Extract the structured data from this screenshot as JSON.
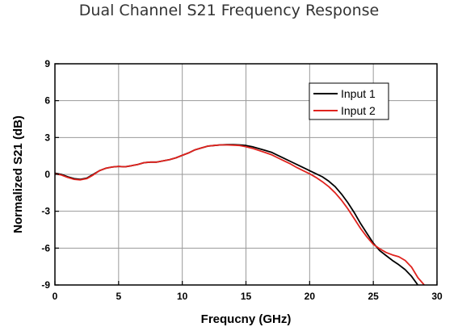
{
  "chart_data": {
    "type": "line",
    "title": "Dual Channel S21 Frequency Response",
    "xlabel": "Frequcny (GHz)",
    "ylabel": "Normalized S21 (dB)",
    "xlim": [
      0,
      30
    ],
    "ylim": [
      -9,
      9
    ],
    "xticks": [
      0,
      5,
      10,
      15,
      20,
      25,
      30
    ],
    "yticks": [
      -9,
      -6,
      -3,
      0,
      3,
      6,
      9
    ],
    "xtick_labels": [
      "0",
      "5",
      "10",
      "15",
      "20",
      "25",
      "30"
    ],
    "ytick_labels": [
      "-9",
      "-6",
      "-3",
      "0",
      "3",
      "6",
      "9"
    ],
    "grid": true,
    "legend_position": "top-right",
    "series": [
      {
        "name": "Input 1",
        "color": "#000000",
        "x": [
          0,
          0.5,
          1,
          1.5,
          2,
          2.5,
          3,
          3.5,
          4,
          4.5,
          5,
          5.5,
          6,
          6.5,
          7,
          7.5,
          8,
          8.5,
          9,
          9.5,
          10,
          10.5,
          11,
          11.5,
          12,
          12.5,
          13,
          13.5,
          14,
          14.5,
          15,
          15.5,
          16,
          16.5,
          17,
          17.5,
          18,
          18.5,
          19,
          19.5,
          20,
          20.5,
          21,
          21.5,
          22,
          22.5,
          23,
          23.5,
          24,
          24.5,
          25,
          25.5,
          26,
          26.5,
          27,
          27.5,
          28,
          28.5
        ],
        "y": [
          0.1,
          0.0,
          -0.2,
          -0.35,
          -0.4,
          -0.3,
          0.0,
          0.3,
          0.5,
          0.6,
          0.65,
          0.62,
          0.7,
          0.8,
          0.95,
          1.0,
          1.0,
          1.1,
          1.2,
          1.35,
          1.55,
          1.75,
          2.0,
          2.15,
          2.3,
          2.35,
          2.4,
          2.42,
          2.42,
          2.4,
          2.35,
          2.25,
          2.1,
          1.95,
          1.8,
          1.55,
          1.3,
          1.05,
          0.8,
          0.55,
          0.3,
          0.05,
          -0.2,
          -0.55,
          -1.0,
          -1.6,
          -2.3,
          -3.1,
          -4.0,
          -4.8,
          -5.6,
          -6.2,
          -6.6,
          -7.0,
          -7.35,
          -7.75,
          -8.3,
          -9.0
        ]
      },
      {
        "name": "Input 2",
        "color": "#e0231e",
        "x": [
          0,
          0.5,
          1,
          1.5,
          2,
          2.5,
          3,
          3.5,
          4,
          4.5,
          5,
          5.5,
          6,
          6.5,
          7,
          7.5,
          8,
          8.5,
          9,
          9.5,
          10,
          10.5,
          11,
          11.5,
          12,
          12.5,
          13,
          13.5,
          14,
          14.5,
          15,
          15.5,
          16,
          16.5,
          17,
          17.5,
          18,
          18.5,
          19,
          19.5,
          20,
          20.5,
          21,
          21.5,
          22,
          22.5,
          23,
          23.5,
          24,
          24.5,
          25,
          25.5,
          26,
          26.5,
          27,
          27.5,
          28,
          28.5,
          29
        ],
        "y": [
          0.05,
          -0.05,
          -0.25,
          -0.4,
          -0.45,
          -0.35,
          -0.05,
          0.3,
          0.5,
          0.6,
          0.65,
          0.62,
          0.7,
          0.8,
          0.95,
          1.0,
          1.0,
          1.1,
          1.2,
          1.35,
          1.55,
          1.75,
          2.0,
          2.15,
          2.3,
          2.35,
          2.4,
          2.4,
          2.38,
          2.35,
          2.25,
          2.12,
          1.95,
          1.78,
          1.6,
          1.35,
          1.1,
          0.85,
          0.55,
          0.3,
          0.05,
          -0.25,
          -0.6,
          -1.0,
          -1.5,
          -2.1,
          -2.8,
          -3.6,
          -4.4,
          -5.1,
          -5.7,
          -6.05,
          -6.35,
          -6.55,
          -6.7,
          -7.0,
          -7.55,
          -8.4,
          -9.0
        ]
      }
    ]
  }
}
